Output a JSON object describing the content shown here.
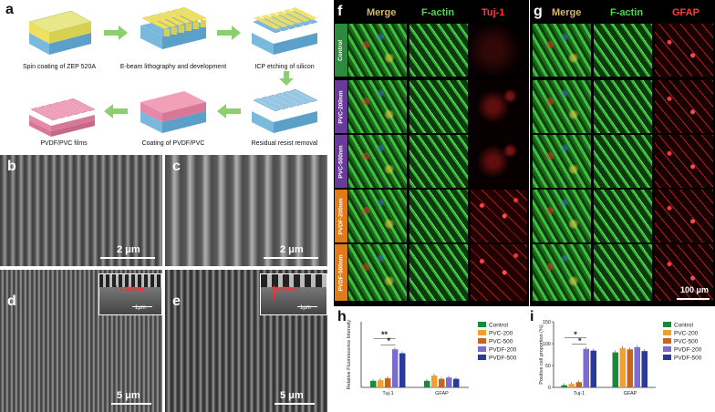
{
  "panels": {
    "a": {
      "label": "a",
      "steps": [
        "Spin coating of ZEP 520A",
        "E-beam lithography and development",
        "ICP etching of silicon",
        "PVDF/PVC films",
        "Coating of PVDF/PVC",
        "Residual resist removal"
      ]
    },
    "b": {
      "label": "b",
      "scale": "2 μm"
    },
    "c": {
      "label": "c",
      "scale": "2 μm"
    },
    "d": {
      "label": "d",
      "scale": "5 μm",
      "inset_scale": "1μm",
      "inset_annot": "d=200nm"
    },
    "e": {
      "label": "e",
      "scale": "5 μm",
      "inset_scale": "1μm",
      "inset_annot": "d=500nm"
    },
    "f": {
      "label": "f",
      "cols": [
        "Merge",
        "F-actin",
        "Tuj-1"
      ]
    },
    "g": {
      "label": "g",
      "cols": [
        "Merge",
        "F-actin",
        "GFAP"
      ],
      "scale": "100 μm"
    },
    "rows": [
      "Control",
      "PVC-200nm",
      "PVC-500nm",
      "PVDF-200nm",
      "PVDF-500nm"
    ],
    "h": {
      "label": "h"
    },
    "i": {
      "label": "i"
    }
  },
  "colors": {
    "control": "#1a8a3a",
    "pvc200": "#f0a030",
    "pvc500": "#c8641e",
    "pvdf200": "#7a6cd0",
    "pvdf500": "#2a3a9a",
    "rowtab_control": "#2e8a3e",
    "rowtab_pvc": "#6a3a9a",
    "rowtab_pvdf": "#e07a1a"
  },
  "chart_data": [
    {
      "type": "bar",
      "title": "",
      "ylabel": "Relative Fluorescence Intensity",
      "categories": [
        "Tuj-1",
        "GFAP"
      ],
      "ylim": [
        0,
        10
      ],
      "series": [
        {
          "name": "Control",
          "values": [
            1.0,
            1.0
          ]
        },
        {
          "name": "PVC-200",
          "values": [
            1.1,
            1.8
          ]
        },
        {
          "name": "PVC-500",
          "values": [
            1.4,
            1.3
          ]
        },
        {
          "name": "PVDF-200",
          "values": [
            5.8,
            1.5
          ]
        },
        {
          "name": "PVDF-500",
          "values": [
            5.2,
            1.3
          ]
        }
      ],
      "significance": [
        "**",
        "*"
      ]
    },
    {
      "type": "bar",
      "title": "",
      "ylabel": "Positive cell proportion (%)",
      "categories": [
        "Tuj-1",
        "GFAP"
      ],
      "ylim": [
        0,
        150
      ],
      "yticks": [
        0,
        50,
        100,
        150
      ],
      "series": [
        {
          "name": "Control",
          "values": [
            5,
            80
          ]
        },
        {
          "name": "PVC-200",
          "values": [
            8,
            90
          ]
        },
        {
          "name": "PVC-500",
          "values": [
            12,
            87
          ]
        },
        {
          "name": "PVDF-200",
          "values": [
            88,
            92
          ]
        },
        {
          "name": "PVDF-500",
          "values": [
            84,
            83
          ]
        }
      ],
      "significance": [
        "*",
        "*"
      ]
    }
  ]
}
